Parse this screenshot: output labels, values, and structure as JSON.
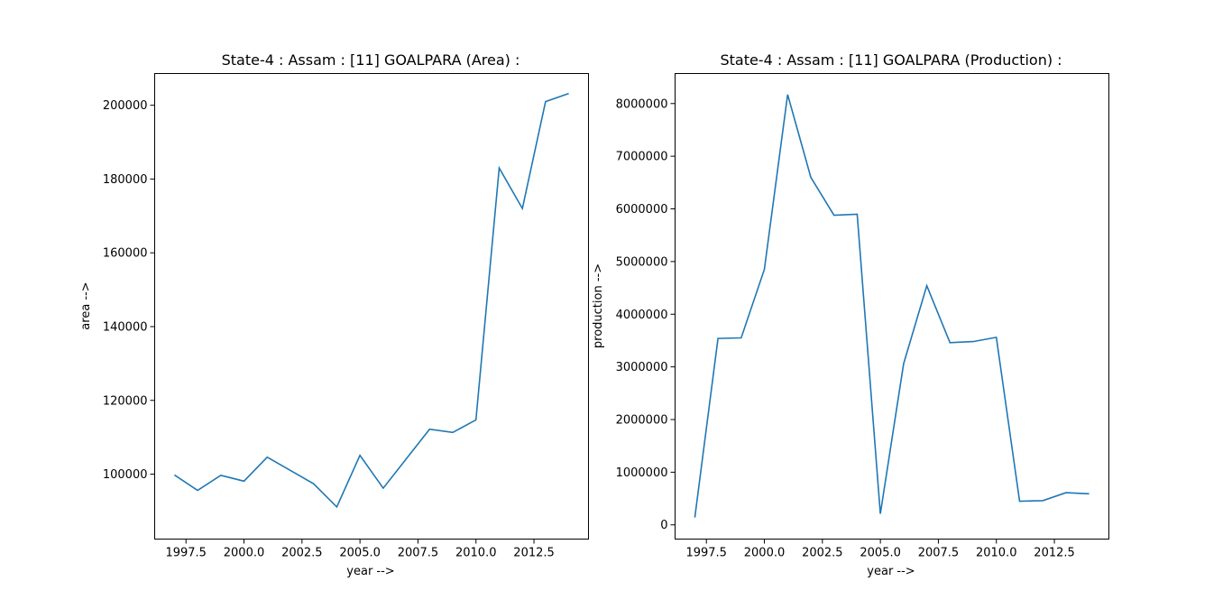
{
  "chart_data": [
    {
      "type": "line",
      "title": "State-4 : Assam : [11] GOALPARA (Area) :",
      "xlabel": "year -->",
      "ylabel": "area -->",
      "xlim": [
        1996.15,
        2014.85
      ],
      "ylim": [
        82400,
        208600
      ],
      "xticks": [
        1997.5,
        2000.0,
        2002.5,
        2005.0,
        2007.5,
        2010.0,
        2012.5
      ],
      "xtick_labels": [
        "1997.5",
        "2000.0",
        "2002.5",
        "2005.0",
        "2007.5",
        "2010.0",
        "2012.5"
      ],
      "yticks": [
        100000,
        120000,
        140000,
        160000,
        180000,
        200000
      ],
      "ytick_labels": [
        "100000",
        "120000",
        "140000",
        "160000",
        "180000",
        "200000"
      ],
      "grid": false,
      "line_color": "#1f77b4",
      "x": [
        1997,
        1998,
        1999,
        2000,
        2001,
        2002,
        2003,
        2004,
        2005,
        2006,
        2007,
        2008,
        2009,
        2010,
        2011,
        2012,
        2013,
        2014
      ],
      "values": [
        99800,
        95600,
        99700,
        98100,
        104600,
        101000,
        97400,
        91100,
        105100,
        96200,
        104200,
        112200,
        111300,
        114700,
        183000,
        172000,
        201000,
        203200
      ]
    },
    {
      "type": "line",
      "title": "State-4 : Assam : [11] GOALPARA (Production) :",
      "xlabel": "year -->",
      "ylabel": "production -->",
      "xlim": [
        1996.15,
        2014.85
      ],
      "ylim": [
        -270000,
        8570000
      ],
      "xticks": [
        1997.5,
        2000.0,
        2002.5,
        2005.0,
        2007.5,
        2010.0,
        2012.5
      ],
      "xtick_labels": [
        "1997.5",
        "2000.0",
        "2002.5",
        "2005.0",
        "2007.5",
        "2010.0",
        "2012.5"
      ],
      "yticks": [
        0,
        1000000,
        2000000,
        3000000,
        4000000,
        5000000,
        6000000,
        7000000,
        8000000
      ],
      "ytick_labels": [
        "0",
        "1000000",
        "2000000",
        "3000000",
        "4000000",
        "5000000",
        "6000000",
        "7000000",
        "8000000"
      ],
      "grid": false,
      "line_color": "#1f77b4",
      "x": [
        1997,
        1998,
        1999,
        2000,
        2001,
        2002,
        2003,
        2004,
        2005,
        2006,
        2007,
        2008,
        2009,
        2010,
        2011,
        2012,
        2013,
        2014
      ],
      "values": [
        140000,
        3540000,
        3550000,
        4850000,
        8170000,
        6600000,
        5880000,
        5900000,
        210000,
        3060000,
        4540000,
        3460000,
        3480000,
        3560000,
        450000,
        460000,
        610000,
        590000
      ]
    }
  ]
}
